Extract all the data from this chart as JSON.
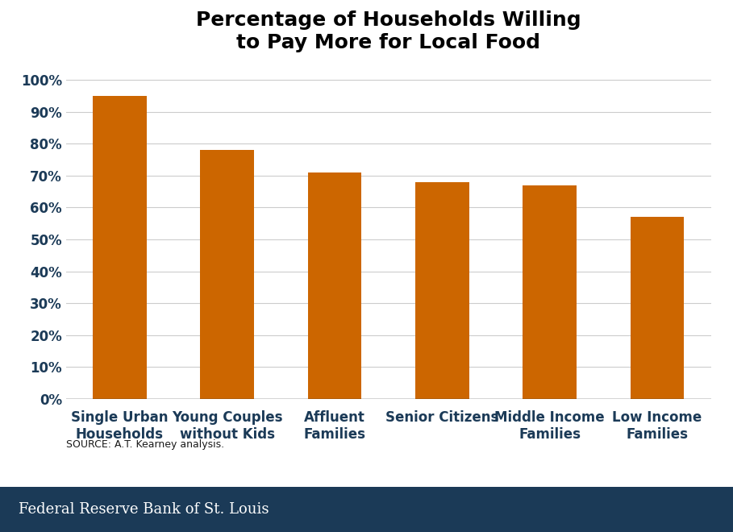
{
  "title": "Percentage of Households Willing\nto Pay More for Local Food",
  "categories": [
    "Single Urban\nHouseholds",
    "Young Couples\nwithout Kids",
    "Affluent\nFamilies",
    "Senior Citizens",
    "Middle Income\nFamilies",
    "Low Income\nFamilies"
  ],
  "values": [
    0.95,
    0.78,
    0.71,
    0.68,
    0.67,
    0.57
  ],
  "bar_color": "#CC6600",
  "ytick_labels": [
    "0%",
    "10%",
    "20%",
    "30%",
    "40%",
    "50%",
    "60%",
    "70%",
    "80%",
    "90%",
    "100%"
  ],
  "ytick_values": [
    0.0,
    0.1,
    0.2,
    0.3,
    0.4,
    0.5,
    0.6,
    0.7,
    0.8,
    0.9,
    1.0
  ],
  "ylim": [
    0,
    1.05
  ],
  "source_text": "SOURCE: A.T. Kearney analysis.",
  "source_color": "#1A1A1A",
  "footer_text": "Federal Reserve Bank of St. Louis",
  "footer_bg": "#1B3A57",
  "footer_text_color": "#FFFFFF",
  "bg_color": "#FFFFFF",
  "grid_color": "#CCCCCC",
  "title_fontsize": 18,
  "tick_fontsize": 12,
  "xtick_color": "#1B3A57",
  "ytick_color": "#1B3A57",
  "source_fontsize": 9,
  "bar_width": 0.5
}
